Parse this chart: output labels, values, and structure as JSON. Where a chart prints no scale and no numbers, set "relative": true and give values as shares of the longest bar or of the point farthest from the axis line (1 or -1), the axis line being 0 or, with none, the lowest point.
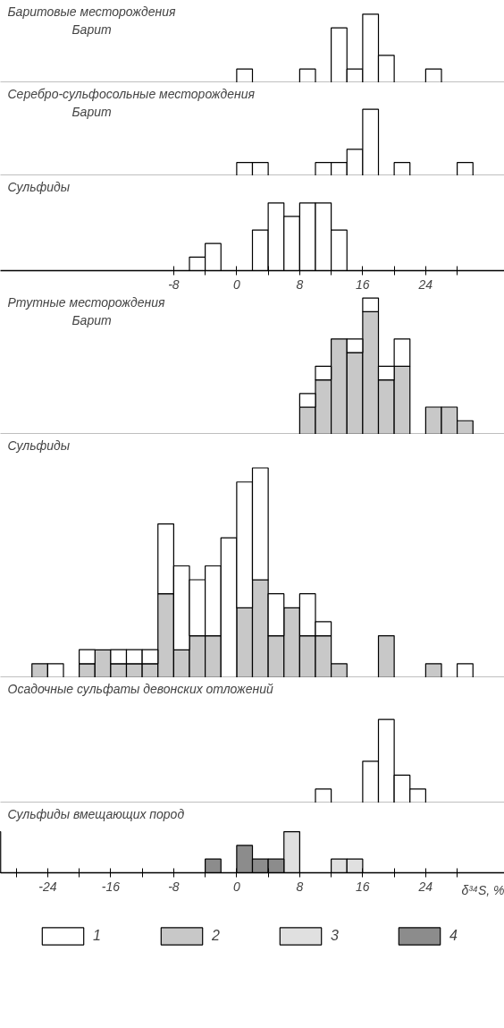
{
  "chart_data": [
    {
      "type": "bar",
      "title": "Баритовые месторождения",
      "subtitle": "Барит",
      "relative": true,
      "stacked": true,
      "grid": false,
      "tick_labels": false,
      "xlim": [
        -30,
        34
      ],
      "x": [
        1,
        9,
        13,
        15,
        17,
        19,
        25
      ],
      "series": [
        {
          "color": "#ffffff",
          "values": [
            0.2,
            0.2,
            0.8,
            0.2,
            1,
            0.4,
            0.2
          ]
        }
      ]
    },
    {
      "type": "bar",
      "title": "Серебро-сульфосольные месторождения",
      "subtitle": "Барит",
      "relative": true,
      "stacked": true,
      "grid": false,
      "tick_labels": false,
      "xlim": [
        -30,
        34
      ],
      "x": [
        1,
        3,
        11,
        13,
        15,
        17,
        21,
        29
      ],
      "series": [
        {
          "color": "#ffffff",
          "values": [
            0.2,
            0.2,
            0.2,
            0.2,
            0.4,
            1,
            0.2,
            0.2
          ]
        }
      ]
    },
    {
      "type": "bar",
      "title": "Сульфиды",
      "relative": true,
      "stacked": true,
      "grid": false,
      "tick_labels": "x",
      "xlim": [
        -30,
        34
      ],
      "xticks": [
        -8,
        {
          "value": -4,
          "label": null
        },
        0,
        {
          "value": 4,
          "label": null
        },
        8,
        {
          "value": 12,
          "label": null
        },
        16,
        {
          "value": 20,
          "label": null
        },
        24,
        {
          "value": 28,
          "label": null
        }
      ],
      "x": [
        -5,
        -3,
        3,
        5,
        7,
        9,
        11,
        13
      ],
      "series": [
        {
          "color": "#ffffff",
          "values": [
            0.2,
            0.4,
            0.6,
            1,
            0.8,
            1,
            1,
            0.6
          ]
        }
      ]
    },
    {
      "type": "bar",
      "title": "Ртутные месторождения",
      "subtitle": "Барит",
      "relative": true,
      "stacked": true,
      "grid": false,
      "tick_labels": false,
      "xlim": [
        -30,
        34
      ],
      "x": [
        9,
        11,
        13,
        15,
        17,
        19,
        21,
        25,
        27,
        29
      ],
      "series": [
        {
          "color": "#c8c8c8",
          "values": [
            0.2,
            0.4,
            0.7,
            0.6,
            0.9,
            0.4,
            0.5,
            0.2,
            0.2,
            0.1
          ]
        },
        {
          "color": "#ffffff",
          "values": [
            0.1,
            0.1,
            0,
            0.1,
            0.1,
            0.1,
            0.2,
            0,
            0,
            0
          ]
        }
      ]
    },
    {
      "type": "bar",
      "title": "Сульфиды",
      "relative": true,
      "stacked": true,
      "grid": false,
      "tick_labels": false,
      "xlim": [
        -30,
        34
      ],
      "x": [
        -25,
        -23,
        -19,
        -17,
        -15,
        -13,
        -11,
        -9,
        -7,
        -5,
        -3,
        -1,
        1,
        3,
        5,
        7,
        9,
        11,
        13,
        19,
        25,
        29
      ],
      "series": [
        {
          "color": "#c8c8c8",
          "values": [
            0.067,
            0,
            0.067,
            0.133,
            0.067,
            0.067,
            0.067,
            0.4,
            0.133,
            0.2,
            0.2,
            0,
            0.333,
            0.467,
            0.2,
            0.333,
            0.2,
            0.2,
            0.067,
            0.2,
            0.067,
            0
          ]
        },
        {
          "color": "#ffffff",
          "values": [
            0,
            0.067,
            0.067,
            0,
            0.067,
            0.067,
            0.067,
            0.333,
            0.4,
            0.267,
            0.333,
            0.667,
            0.6,
            0.533,
            0.2,
            0,
            0.2,
            0.067,
            0,
            0,
            0,
            0.067
          ]
        }
      ]
    },
    {
      "type": "bar",
      "title": "Осадочные сульфаты девонских отложений",
      "relative": true,
      "stacked": true,
      "grid": false,
      "tick_labels": false,
      "xlim": [
        -30,
        34
      ],
      "x": [
        11,
        17,
        19,
        21,
        23
      ],
      "series": [
        {
          "color": "#ffffff",
          "values": [
            0.167,
            0.5,
            1,
            0.333,
            0.167
          ]
        }
      ]
    },
    {
      "type": "bar",
      "title": "Сульфиды вмещающих пород",
      "xlabel": "δ³⁴S, %",
      "relative": true,
      "stacked": true,
      "grid": false,
      "tick_labels": "x",
      "legend": "bottom",
      "xlim": [
        -30,
        34
      ],
      "xticks": [
        {
          "value": -28,
          "label": null
        },
        -24,
        {
          "value": -20,
          "label": null
        },
        -16,
        {
          "value": -12,
          "label": null
        },
        -8,
        {
          "value": -4,
          "label": null
        },
        0,
        {
          "value": 4,
          "label": null
        },
        8,
        {
          "value": 12,
          "label": null
        },
        16,
        {
          "value": 20,
          "label": null
        },
        24,
        {
          "value": 28,
          "label": null
        }
      ],
      "x": [
        -3,
        1,
        3,
        5,
        7,
        13,
        15
      ],
      "series": [
        {
          "name": "1",
          "color": "#ffffff",
          "values": [
            0,
            0,
            0,
            0,
            0,
            0,
            0
          ]
        },
        {
          "name": "2",
          "color": "#c8c8c8",
          "values": [
            0,
            0,
            0,
            0,
            0,
            0,
            0
          ]
        },
        {
          "name": "3",
          "color": "#e0e0e0",
          "values": [
            0,
            0,
            0,
            0,
            1,
            0.333,
            0.333
          ]
        },
        {
          "name": "4",
          "color": "#8c8c8c",
          "values": [
            0.333,
            0.667,
            0.333,
            0.333,
            0,
            0,
            0
          ]
        }
      ]
    }
  ]
}
